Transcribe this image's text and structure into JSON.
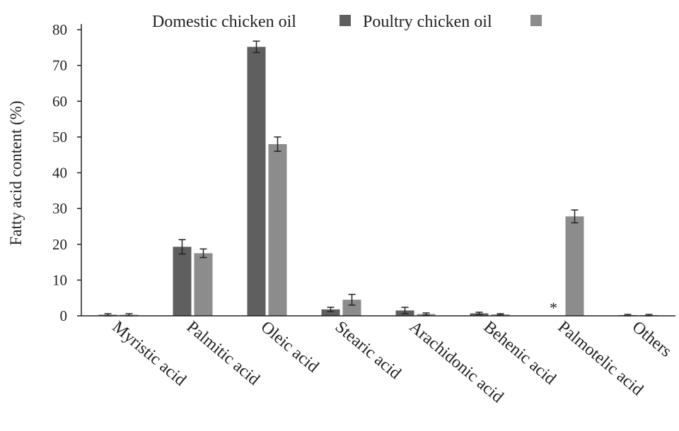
{
  "chart_data": {
    "type": "bar",
    "title": "",
    "xlabel": "",
    "ylabel": "Fatty acid content (%)",
    "ylim": [
      0,
      80
    ],
    "yticks": [
      0,
      10,
      20,
      30,
      40,
      50,
      60,
      70,
      80
    ],
    "grid": false,
    "legend_position": "top",
    "categories": [
      "Myristic acid",
      "Palmitic acid",
      "Oleic acid",
      "Stearic acid",
      "Arachidonic acid",
      "Behenic acid",
      "Palmotelic acid",
      "Others"
    ],
    "series": [
      {
        "name": "Domestic chicken oil",
        "color": "#5f5f5f",
        "values": [
          0.3,
          19.3,
          75.2,
          1.8,
          1.5,
          0.7,
          0,
          0.2
        ],
        "errors": [
          0.3,
          2.0,
          1.6,
          0.6,
          0.9,
          0.3,
          0,
          0.2
        ]
      },
      {
        "name": "Poultry chicken oil",
        "color": "#8c8c8c",
        "values": [
          0.3,
          17.5,
          48.0,
          4.5,
          0.5,
          0.4,
          27.8,
          0.2
        ],
        "errors": [
          0.3,
          1.2,
          2.0,
          1.5,
          0.3,
          0.2,
          1.8,
          0.2
        ]
      }
    ],
    "annotations": [
      {
        "text": "*",
        "category": "Palmotelic acid",
        "series": 0
      }
    ]
  }
}
